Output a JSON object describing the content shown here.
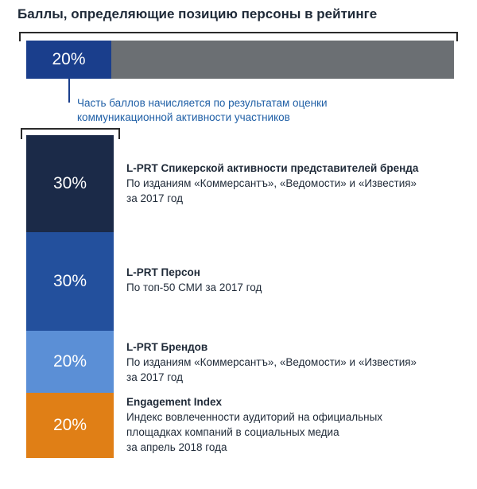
{
  "title": "Баллы, определяющие позицию персоны в рейтинге",
  "top_bar": {
    "segment_label": "20%",
    "segment_value": 0.2
  },
  "note": {
    "line1": "Часть баллов начисляется по результатам оценки",
    "line2": "коммуникационной активности участников"
  },
  "stack": [
    {
      "label": "30%",
      "title": "L-PRT Спикерской активности представителей бренда",
      "lines": [
        "По изданиям «Коммерсантъ», «Ведомости» и «Известия»",
        "за 2017 год"
      ]
    },
    {
      "label": "30%",
      "title": "L-PRT Персон",
      "lines": [
        "По топ-50 СМИ за 2017 год"
      ]
    },
    {
      "label": "20%",
      "title": "L-PRT Брендов",
      "lines": [
        "По изданиям «Коммерсантъ», «Ведомости» и «Известия»",
        "за 2017 год"
      ]
    },
    {
      "label": "20%",
      "title": "Engagement Index",
      "lines": [
        "Индекс вовлеченности аудиторий на официальных",
        "площадках компаний в социальных медиа",
        "за апрель 2018 года"
      ]
    }
  ],
  "colors": {
    "top_bar_bg": "#6b6f73",
    "top_bar_segment": "#1a3e8c",
    "seg_1": "#1b2a48",
    "seg_2": "#23509d",
    "seg_3": "#5b8fd6",
    "seg_4": "#e07f16",
    "note_text": "#1f5fa6"
  }
}
